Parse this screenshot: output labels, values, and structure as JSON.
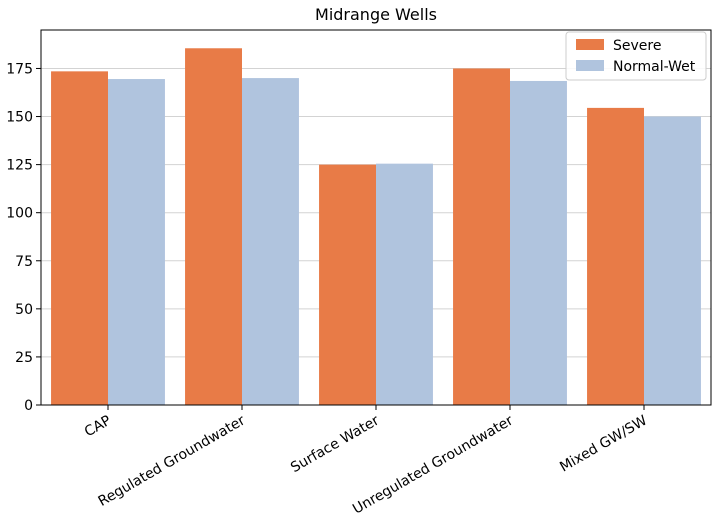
{
  "chart_data": {
    "type": "bar",
    "title": "Midrange Wells",
    "xlabel": "",
    "ylabel": "",
    "categories": [
      "CAP",
      "Regulated Groundwater",
      "Surface Water",
      "Unregulated Groundwater",
      "Mixed GW/SW"
    ],
    "series": [
      {
        "name": "Severe",
        "color": "#e87b47",
        "values": [
          173.5,
          185.5,
          125.0,
          175.0,
          154.5
        ]
      },
      {
        "name": "Normal-Wet",
        "color": "#b0c4de",
        "values": [
          169.5,
          170.0,
          125.5,
          168.5,
          150.0
        ]
      }
    ],
    "ylim": [
      0,
      195
    ],
    "yticks": [
      0,
      25,
      50,
      75,
      100,
      125,
      150,
      175
    ],
    "grid": "y",
    "legend_position": "top-right",
    "x_tick_rotation": -30
  }
}
